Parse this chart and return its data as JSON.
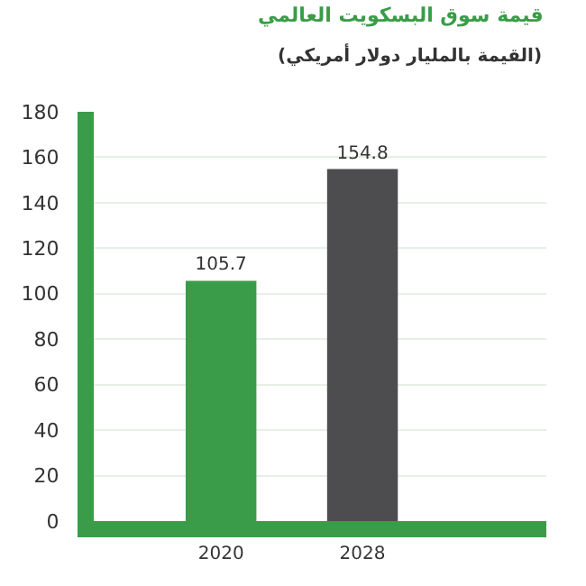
{
  "chart_data": {
    "type": "bar",
    "title": "قيمة سوق البسكويت العالمي",
    "subtitle": "(القيمة بالمليار دولار أمريكي)",
    "categories": [
      "2020",
      "2028"
    ],
    "values": [
      105.7,
      154.8
    ],
    "colors": [
      "#3a9c48",
      "#4d4d4f"
    ],
    "ylim": [
      0,
      180
    ],
    "yticks": [
      0,
      20,
      40,
      60,
      80,
      100,
      120,
      140,
      160,
      180
    ],
    "grid": "y",
    "data_labels": true
  }
}
